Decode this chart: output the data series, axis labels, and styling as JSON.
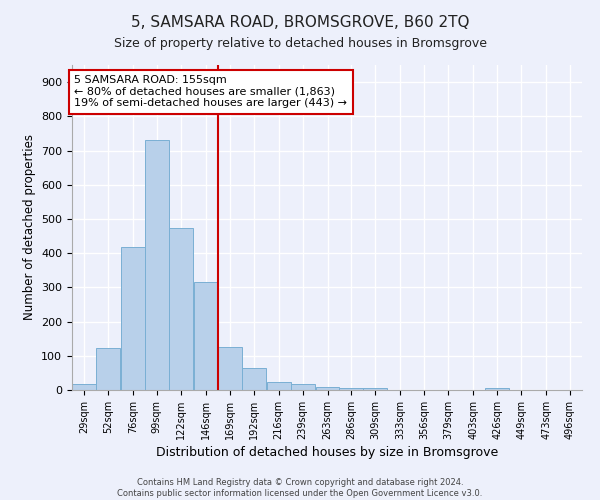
{
  "title": "5, SAMSARA ROAD, BROMSGROVE, B60 2TQ",
  "subtitle": "Size of property relative to detached houses in Bromsgrove",
  "xlabel": "Distribution of detached houses by size in Bromsgrove",
  "ylabel": "Number of detached properties",
  "footer_line1": "Contains HM Land Registry data © Crown copyright and database right 2024.",
  "footer_line2": "Contains public sector information licensed under the Open Government Licence v3.0.",
  "annotation_line1": "5 SAMSARA ROAD: 155sqm",
  "annotation_line2": "← 80% of detached houses are smaller (1,863)",
  "annotation_line3": "19% of semi-detached houses are larger (443) →",
  "bar_color": "#b8d0ea",
  "bar_edge_color": "#7aafd4",
  "vline_x": 169,
  "vline_color": "#cc0000",
  "categories": [
    "29sqm",
    "52sqm",
    "76sqm",
    "99sqm",
    "122sqm",
    "146sqm",
    "169sqm",
    "192sqm",
    "216sqm",
    "239sqm",
    "263sqm",
    "286sqm",
    "309sqm",
    "333sqm",
    "356sqm",
    "379sqm",
    "403sqm",
    "426sqm",
    "449sqm",
    "473sqm",
    "496sqm"
  ],
  "bin_edges": [
    29,
    52,
    76,
    99,
    122,
    146,
    169,
    192,
    216,
    239,
    263,
    286,
    309,
    333,
    356,
    379,
    403,
    426,
    449,
    473,
    496
  ],
  "bin_width": 23,
  "values": [
    17,
    122,
    417,
    730,
    473,
    315,
    127,
    65,
    23,
    19,
    10,
    5,
    5,
    0,
    0,
    0,
    0,
    5,
    0,
    0,
    0
  ],
  "ylim": [
    0,
    950
  ],
  "yticks": [
    0,
    100,
    200,
    300,
    400,
    500,
    600,
    700,
    800,
    900
  ],
  "bg_color": "#edf0fb",
  "plot_bg_color": "#edf0fb",
  "grid_color": "#ffffff",
  "title_fontsize": 11,
  "subtitle_fontsize": 9,
  "annotation_fontsize": 8
}
